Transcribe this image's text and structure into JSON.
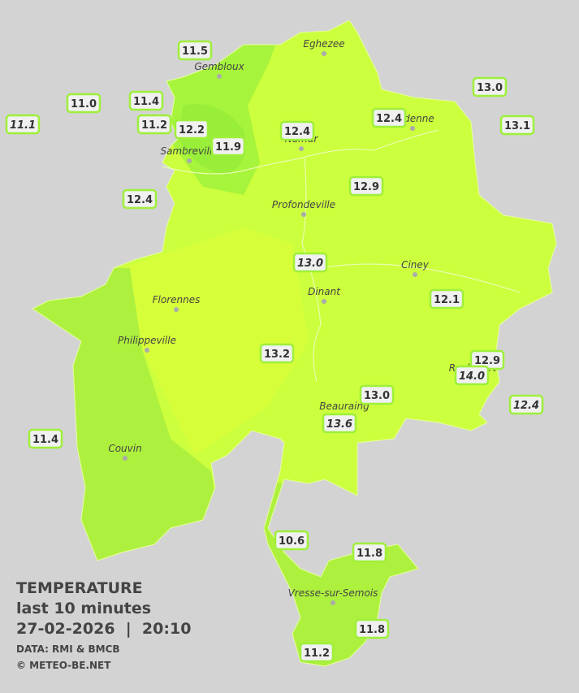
{
  "legend": {
    "title": "TEMPERATURE",
    "subtitle": "last 10 minutes",
    "datetime": "27-02-2026  |  20:10",
    "source": "DATA: RMI & BMCB",
    "credit": "© METEO-BE.NET"
  },
  "towns": [
    "Eghezee",
    "Gembloux",
    "Andenne",
    "Namur",
    "Sambreville",
    "Profondeville",
    "Ciney",
    "Dinant",
    "Florennes",
    "Philippeville",
    "Rochefort",
    "Beauraing",
    "Couvin",
    "Vresse-sur-Semois"
  ],
  "readings": [
    {
      "value": "11.5",
      "italic": false
    },
    {
      "value": "11.0",
      "italic": false
    },
    {
      "value": "11.4",
      "italic": false
    },
    {
      "value": "11.1",
      "italic": true
    },
    {
      "value": "11.2",
      "italic": false
    },
    {
      "value": "12.2",
      "italic": false
    },
    {
      "value": "11.9",
      "italic": false
    },
    {
      "value": "12.4",
      "italic": false
    },
    {
      "value": "12.4",
      "italic": false
    },
    {
      "value": "13.0",
      "italic": false
    },
    {
      "value": "13.1",
      "italic": false
    },
    {
      "value": "12.4",
      "italic": false
    },
    {
      "value": "12.9",
      "italic": false
    },
    {
      "value": "13.0",
      "italic": true
    },
    {
      "value": "12.1",
      "italic": false
    },
    {
      "value": "13.2",
      "italic": false
    },
    {
      "value": "12.9",
      "italic": false
    },
    {
      "value": "14.0",
      "italic": true
    },
    {
      "value": "13.0",
      "italic": false
    },
    {
      "value": "12.4",
      "italic": true
    },
    {
      "value": "13.6",
      "italic": true
    },
    {
      "value": "11.4",
      "italic": false
    },
    {
      "value": "10.6",
      "italic": false
    },
    {
      "value": "11.8",
      "italic": false
    },
    {
      "value": "11.8",
      "italic": false
    },
    {
      "value": "11.2",
      "italic": false
    }
  ]
}
